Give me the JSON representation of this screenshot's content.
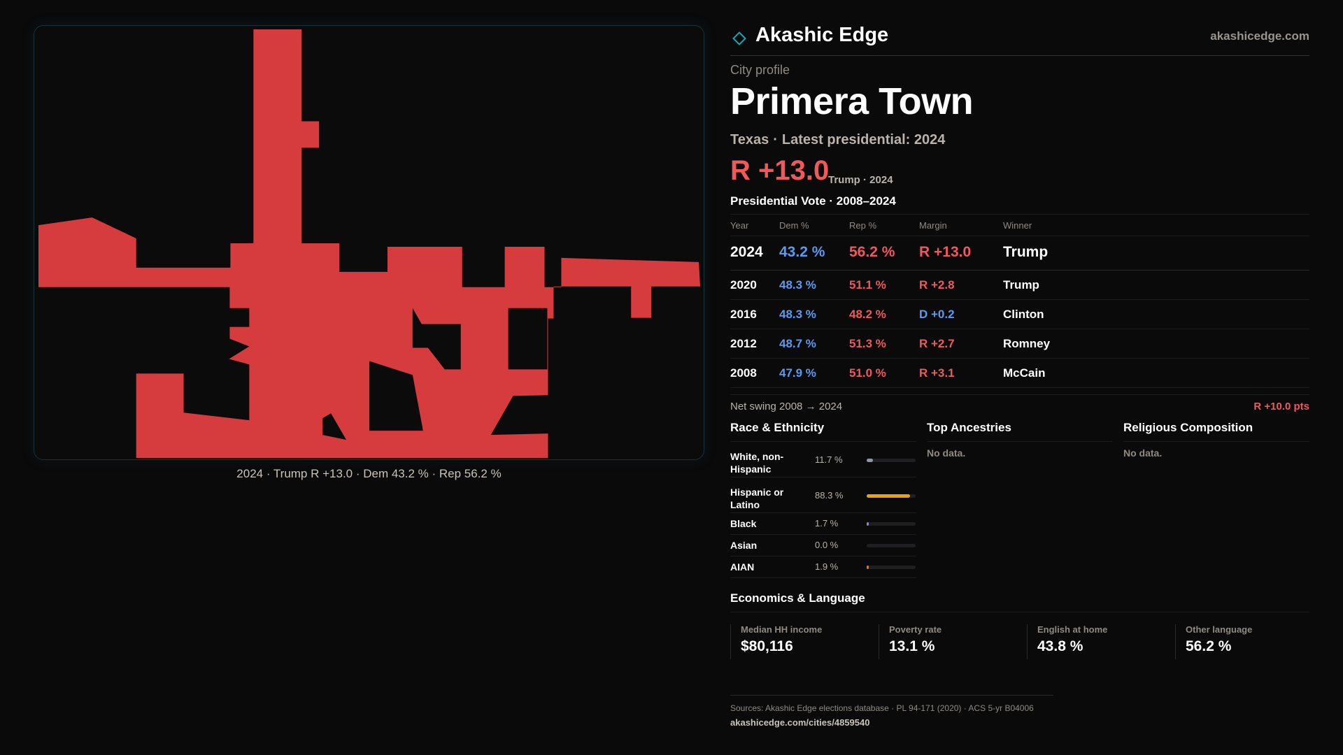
{
  "map": {
    "fill_color": "#d63b3d",
    "caption": "2024 · Trump R +13.0 · Dem 43.2 % · Rep 56.2 %"
  },
  "brand": {
    "name": "Akashic Edge",
    "url": "akashicedge.com",
    "logo_icon": "diamond-icon",
    "accent": "#17a8b8"
  },
  "profile": {
    "eyebrow": "City profile",
    "city": "Primera Town",
    "state": "Texas",
    "latest": "Latest presidential: 2024",
    "headline_margin": "R +13.0",
    "headline_meta": "Trump · 2024"
  },
  "votes": {
    "title": "Presidential Vote · 2008–2024",
    "headers": {
      "year": "Year",
      "dem": "Dem %",
      "rep": "Rep %",
      "margin": "Margin",
      "winner": "Winner"
    },
    "rows": [
      {
        "year": "2024",
        "dem": "43.2 %",
        "rep": "56.2 %",
        "margin": "R +13.0",
        "winner": "Trump",
        "party": "R"
      },
      {
        "year": "2020",
        "dem": "48.3 %",
        "rep": "51.1 %",
        "margin": "R +2.8",
        "winner": "Trump",
        "party": "R"
      },
      {
        "year": "2016",
        "dem": "48.3 %",
        "rep": "48.2 %",
        "margin": "D +0.2",
        "winner": "Clinton",
        "party": "D"
      },
      {
        "year": "2012",
        "dem": "48.7 %",
        "rep": "51.3 %",
        "margin": "R +2.7",
        "winner": "Romney",
        "party": "R"
      },
      {
        "year": "2008",
        "dem": "47.9 %",
        "rep": "51.0 %",
        "margin": "R +3.1",
        "winner": "McCain",
        "party": "R"
      }
    ],
    "swing_label": "Net swing 2008 → 2024",
    "swing_value": "R +10.0 pts"
  },
  "colors": {
    "dem": "#5a9bf0",
    "rep": "#f0595c"
  },
  "race": {
    "title": "Race & Ethnicity",
    "rows": [
      {
        "label": "White, non-Hispanic",
        "pct": "11.7 %",
        "value": 11.7,
        "color": "#8a98a8"
      },
      {
        "label": "Hispanic or Latino",
        "pct": "88.3 %",
        "value": 88.3,
        "color": "#e8a21a"
      },
      {
        "label": "Black",
        "pct": "1.7 %",
        "value": 1.7,
        "color": "#8b7fe0"
      },
      {
        "label": "Asian",
        "pct": "0.0 %",
        "value": 0.0,
        "color": "#3fb0a0"
      },
      {
        "label": "AIAN",
        "pct": "1.9 %",
        "value": 1.9,
        "color": "#e8741a"
      }
    ]
  },
  "ancestries": {
    "title": "Top Ancestries",
    "empty": "No data."
  },
  "religion": {
    "title": "Religious Composition",
    "empty": "No data."
  },
  "economics": {
    "title": "Economics & Language",
    "cells": [
      {
        "label": "Median HH income",
        "value": "$80,116"
      },
      {
        "label": "Poverty rate",
        "value": "13.1 %"
      },
      {
        "label": "English at home",
        "value": "43.8 %"
      },
      {
        "label": "Other language",
        "value": "56.2 %"
      }
    ]
  },
  "footer": {
    "sources": "Sources: Akashic Edge elections database · PL 94-171 (2020) · ACS 5-yr B04006",
    "permalink": "akashicedge.com/cities/4859540"
  }
}
